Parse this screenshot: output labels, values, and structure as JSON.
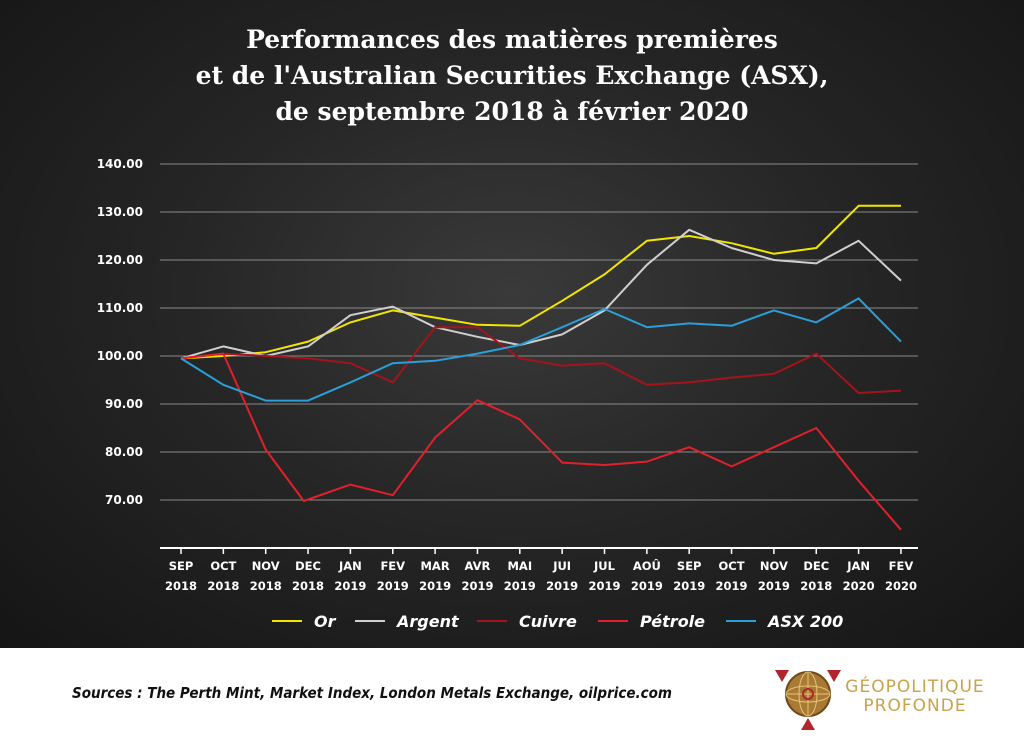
{
  "title": {
    "line1": "Performances des matières premières",
    "line2": "et de l'Australian Securities Exchange (ASX),",
    "line3": "de septembre 2018 à février 2020"
  },
  "footer": {
    "sources": "Sources : The Perth Mint, Market Index, London Metals Exchange, oilprice.com",
    "logo_line1": "GÉOPOLITIQUE",
    "logo_line2": "PROFONDE"
  },
  "colors": {
    "Or": "#f2e600",
    "Argent": "#cfcfcf",
    "Cuivre": "#a3141b",
    "Pétrole": "#e0202b",
    "ASX 200": "#2a9fd8",
    "logo": "#c9a24a"
  },
  "chart_data": {
    "type": "line",
    "title": "Performances des matières premières et de l'Australian Securities Exchange (ASX), de septembre 2018 à février 2020",
    "categories": [
      [
        "SEP",
        "2018"
      ],
      [
        "OCT",
        "2018"
      ],
      [
        "NOV",
        "2018"
      ],
      [
        "DEC",
        "2018"
      ],
      [
        "JAN",
        "2019"
      ],
      [
        "FEV",
        "2019"
      ],
      [
        "MAR",
        "2019"
      ],
      [
        "AVR",
        "2019"
      ],
      [
        "MAI",
        "2019"
      ],
      [
        "JUI",
        "2019"
      ],
      [
        "JUL",
        "2019"
      ],
      [
        "AOÛ",
        "2019"
      ],
      [
        "SEP",
        "2019"
      ],
      [
        "OCT",
        "2019"
      ],
      [
        "NOV",
        "2019"
      ],
      [
        "DEC",
        "2018"
      ],
      [
        "JAN",
        "2020"
      ],
      [
        "FEV",
        "2020"
      ]
    ],
    "y_ticks": [
      "70.00",
      "80.00",
      "90.00",
      "100.00",
      "110.00",
      "120.00",
      "130.00",
      "140.00"
    ],
    "ylim": [
      60,
      140
    ],
    "grid": true,
    "legend_position": "bottom",
    "series": [
      {
        "name": "Or",
        "x": [
          0,
          1,
          2,
          3,
          4,
          5,
          6,
          7,
          8,
          9,
          10,
          11,
          12,
          13,
          14,
          15,
          16,
          17
        ],
        "values": [
          99.5,
          100,
          100.8,
          103,
          107,
          109.5,
          108,
          106.5,
          106.3,
          111.5,
          117,
          124,
          125,
          123.5,
          121.3,
          122.5,
          131.3,
          131.3
        ]
      },
      {
        "name": "Argent",
        "x": [
          0,
          1,
          2,
          3,
          4,
          5,
          6,
          7,
          8,
          9,
          10,
          11,
          12,
          13,
          14,
          15,
          16,
          17
        ],
        "values": [
          99.5,
          102,
          100,
          102,
          108.5,
          110.3,
          106,
          104,
          102.3,
          104.5,
          109.5,
          119,
          126.3,
          122.5,
          120,
          119.3,
          124,
          115.7
        ]
      },
      {
        "name": "Cuivre",
        "x": [
          0,
          1,
          2,
          3,
          4,
          5,
          6,
          7,
          8,
          9,
          10,
          11,
          12,
          13,
          14,
          15,
          16,
          17
        ],
        "values": [
          99.5,
          100.5,
          100,
          99.5,
          98.5,
          94.5,
          106,
          106,
          99.5,
          98,
          98.5,
          94,
          94.5,
          95.5,
          96.3,
          100.5,
          92.3,
          92.8
        ]
      },
      {
        "name": "Pétrole",
        "x": [
          0,
          1,
          2,
          2.9,
          4,
          5,
          6,
          7,
          8,
          9,
          10,
          11,
          12,
          13,
          14,
          15,
          16,
          17
        ],
        "values": [
          99.5,
          100.5,
          80.5,
          69.8,
          73.2,
          71,
          83,
          90.8,
          86.8,
          77.8,
          77.3,
          78,
          81,
          77,
          81,
          85,
          74,
          63.8
        ]
      },
      {
        "name": "ASX 200",
        "x": [
          0,
          1,
          2,
          3,
          4,
          5,
          6,
          7,
          8,
          9,
          10,
          11,
          12,
          13,
          14,
          15,
          16,
          17
        ],
        "values": [
          99.5,
          94,
          90.7,
          90.7,
          94.5,
          98.5,
          99,
          100.5,
          102.3,
          106,
          109.8,
          106,
          106.8,
          106.3,
          109.5,
          107,
          112,
          103
        ]
      }
    ]
  }
}
